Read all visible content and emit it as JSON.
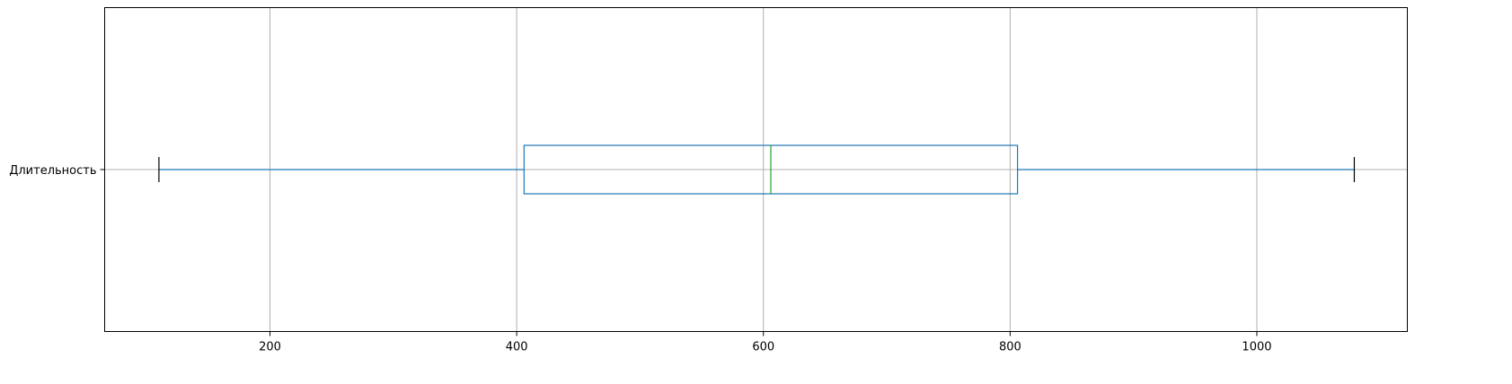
{
  "chart_data": {
    "type": "boxplot",
    "orientation": "horizontal",
    "categories": [
      "Длительность"
    ],
    "boxes": [
      {
        "whisker_low": 110,
        "q1": 406,
        "median": 606,
        "q3": 806,
        "whisker_high": 1079
      }
    ],
    "xlim": [
      66,
      1122
    ],
    "xticks": [
      200,
      400,
      600,
      800,
      1000
    ],
    "xtick_labels": [
      "200",
      "400",
      "600",
      "800",
      "1000"
    ],
    "grid": true,
    "title": "",
    "xlabel": "",
    "ylabel": "",
    "colors": {
      "box": "#1f77b4",
      "whisker": "#1f77b4",
      "median": "#2ca02c",
      "cap": "#000000",
      "grid": "#b0b0b0",
      "frame": "#000000"
    }
  }
}
